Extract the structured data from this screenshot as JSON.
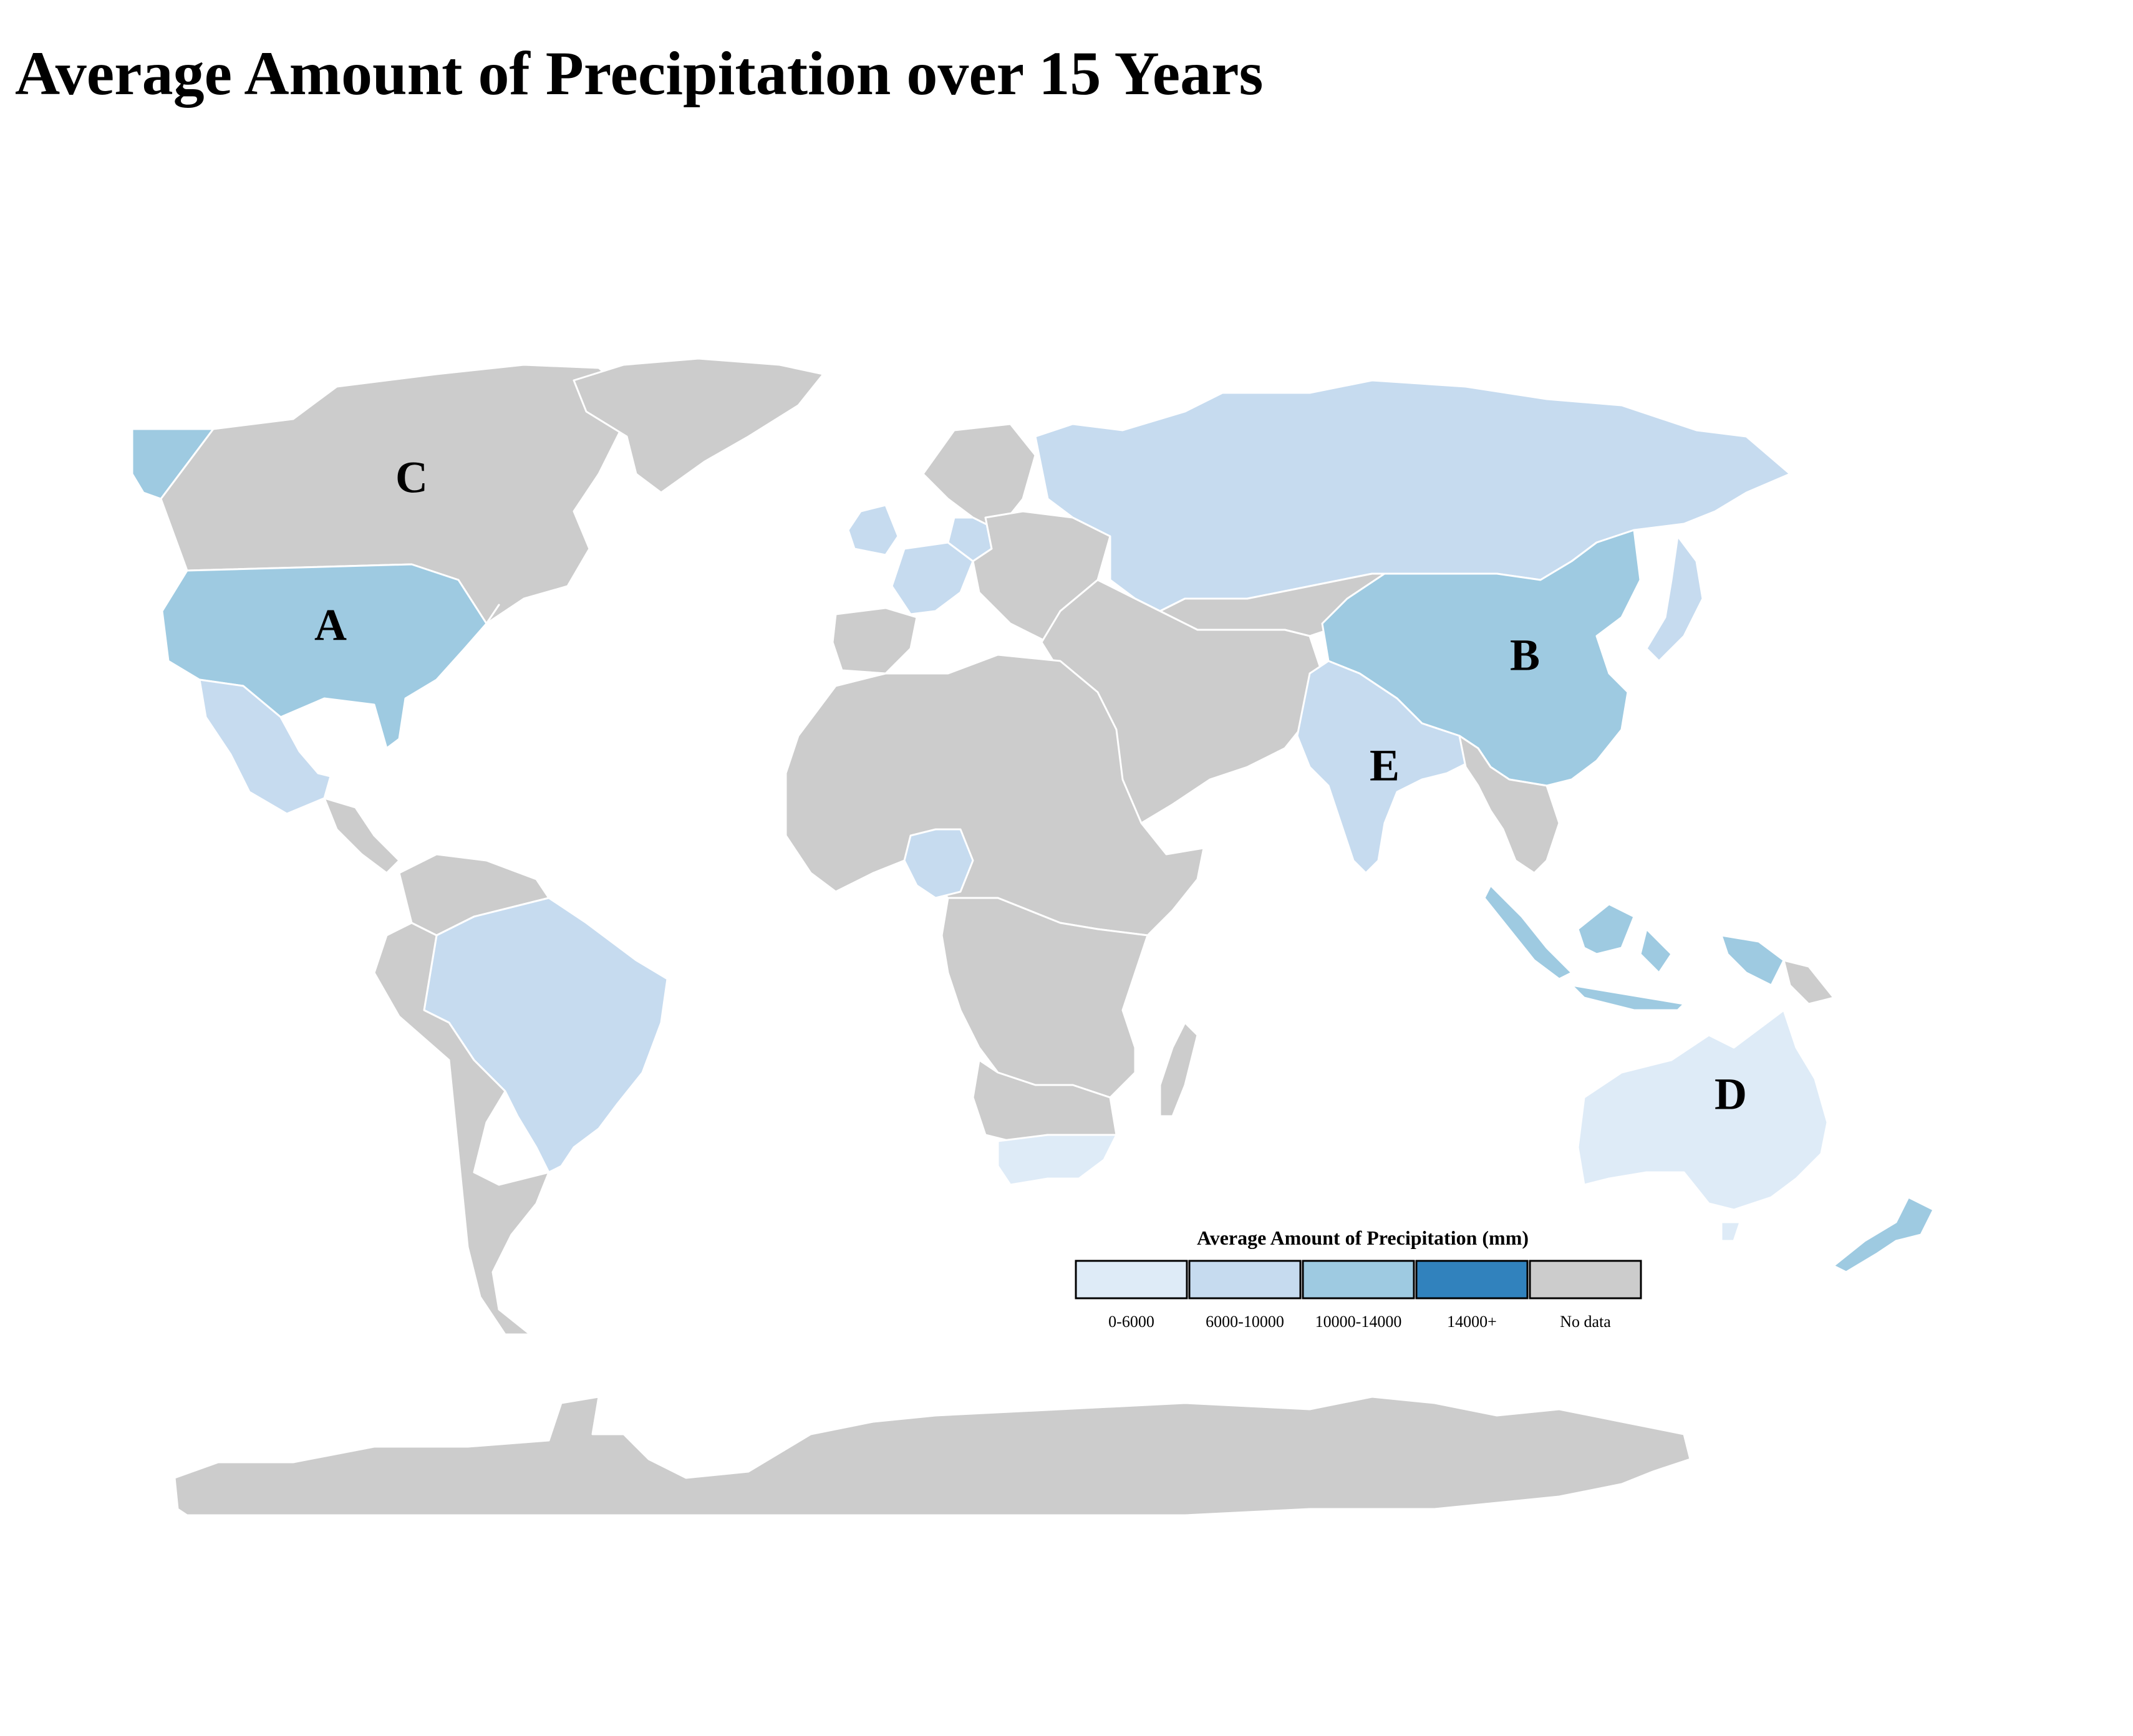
{
  "title": "Average Amount of Precipitation over 15 Years",
  "legend": {
    "title": "Average Amount of Precipitation (mm)",
    "bins": [
      {
        "label": "0-6000",
        "color": "#deebf7"
      },
      {
        "label": "6000-10000",
        "color": "#c6dbef"
      },
      {
        "label": "10000-14000",
        "color": "#9ecae1"
      },
      {
        "label": "14000+",
        "color": "#3182bd"
      },
      {
        "label": "No data",
        "color": "#cccccc"
      }
    ]
  },
  "map_labels": [
    "A",
    "B",
    "C",
    "D",
    "E"
  ],
  "map_data": {
    "type": "choropleth",
    "projection": "world",
    "regions": [
      {
        "region": "United States",
        "bin": "10000-14000",
        "label": "A"
      },
      {
        "region": "China",
        "bin": "10000-14000",
        "label": "B"
      },
      {
        "region": "Canada",
        "bin": "No data",
        "label": "C"
      },
      {
        "region": "Australia",
        "bin": "0-6000",
        "label": "D"
      },
      {
        "region": "India",
        "bin": "6000-10000",
        "label": "E"
      },
      {
        "region": "Russia",
        "bin": "6000-10000"
      },
      {
        "region": "Brazil",
        "bin": "6000-10000"
      },
      {
        "region": "Mexico",
        "bin": "6000-10000"
      },
      {
        "region": "Nigeria",
        "bin": "6000-10000"
      },
      {
        "region": "France",
        "bin": "6000-10000"
      },
      {
        "region": "United Kingdom",
        "bin": "6000-10000"
      },
      {
        "region": "Germany",
        "bin": "6000-10000"
      },
      {
        "region": "Japan",
        "bin": "6000-10000"
      },
      {
        "region": "South Africa",
        "bin": "0-6000"
      },
      {
        "region": "Indonesia",
        "bin": "10000-14000"
      },
      {
        "region": "Malaysia",
        "bin": "10000-14000"
      },
      {
        "region": "New Zealand",
        "bin": "10000-14000"
      },
      {
        "region": "Alaska",
        "bin": "10000-14000"
      },
      {
        "region": "Greenland",
        "bin": "No data"
      },
      {
        "region": "Antarctica",
        "bin": "No data"
      }
    ]
  }
}
